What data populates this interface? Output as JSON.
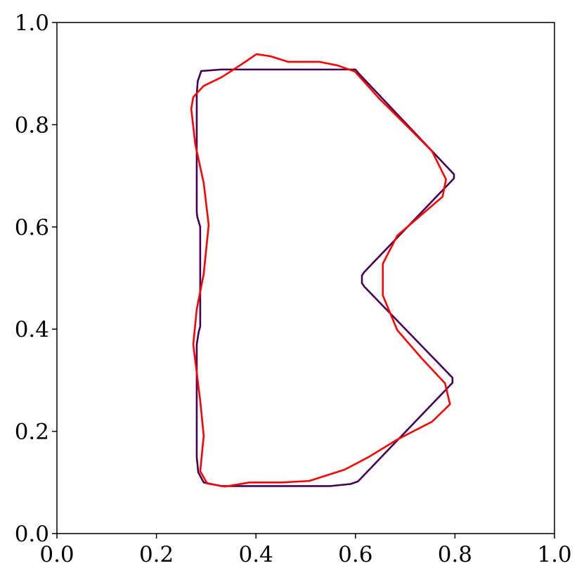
{
  "chart_data": {
    "type": "line",
    "xlim": [
      0,
      1
    ],
    "ylim": [
      0,
      1
    ],
    "xticks": [
      {
        "value": 0,
        "label": "0.0"
      },
      0.2,
      0.4,
      0.6,
      0.8,
      {
        "value": 1,
        "label": "1.0"
      }
    ],
    "yticks": [
      {
        "value": 0,
        "label": "0.0"
      },
      0.2,
      0.4,
      0.6,
      0.8,
      {
        "value": 1,
        "label": "1.0"
      }
    ],
    "grid": false,
    "series": [
      {
        "color": "#440154",
        "x": [
          0.29,
          0.33,
          0.6,
          0.605,
          0.798,
          0.798,
          0.618,
          0.613,
          0.613,
          0.618,
          0.795,
          0.795,
          0.605,
          0.59,
          0.55,
          0.33,
          0.295,
          0.284,
          0.281,
          0.281,
          0.285,
          0.288,
          0.288,
          0.282,
          0.281,
          0.281,
          0.283
        ],
        "y": [
          0.905,
          0.908,
          0.908,
          0.902,
          0.703,
          0.695,
          0.512,
          0.505,
          0.49,
          0.483,
          0.305,
          0.295,
          0.102,
          0.097,
          0.093,
          0.093,
          0.1,
          0.12,
          0.15,
          0.37,
          0.395,
          0.405,
          0.6,
          0.62,
          0.63,
          0.86,
          0.885
        ]
      },
      {
        "color": "#ff0000",
        "x": [
          0.352,
          0.38,
          0.401,
          0.429,
          0.465,
          0.528,
          0.564,
          0.599,
          0.648,
          0.705,
          0.754,
          0.782,
          0.775,
          0.733,
          0.684,
          0.655,
          0.655,
          0.684,
          0.733,
          0.78,
          0.79,
          0.754,
          0.684,
          0.627,
          0.578,
          0.507,
          0.451,
          0.387,
          0.338,
          0.302,
          0.288,
          0.295,
          0.288,
          0.274,
          0.281,
          0.295,
          0.305,
          0.295,
          0.278,
          0.27,
          0.274,
          0.295,
          0.331
        ],
        "y": [
          0.906,
          0.924,
          0.938,
          0.934,
          0.923,
          0.923,
          0.916,
          0.904,
          0.851,
          0.796,
          0.748,
          0.693,
          0.659,
          0.624,
          0.583,
          0.528,
          0.466,
          0.398,
          0.343,
          0.294,
          0.253,
          0.219,
          0.184,
          0.15,
          0.125,
          0.103,
          0.1,
          0.1,
          0.092,
          0.098,
          0.122,
          0.191,
          0.26,
          0.37,
          0.439,
          0.508,
          0.604,
          0.686,
          0.762,
          0.831,
          0.854,
          0.876,
          0.893
        ]
      }
    ]
  }
}
